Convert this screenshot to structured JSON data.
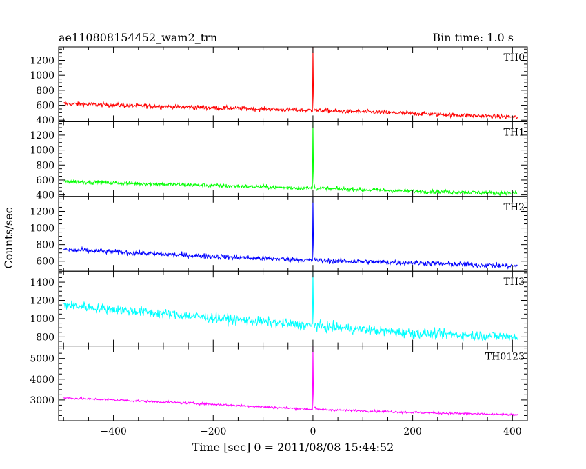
{
  "header": {
    "title": "ae110808154452_wam2_trn",
    "bin_time": "Bin time: 1.0 s"
  },
  "chart_data": {
    "type": "line",
    "xlabel": "Time [sec] 0 = 2011/08/08 15:44:52",
    "ylabel": "Counts/sec",
    "xlim": [
      -510,
      430
    ],
    "xticks": [
      -400,
      -200,
      0,
      200,
      400
    ],
    "x_range": [
      -500,
      410
    ],
    "panels": [
      {
        "name": "TH0",
        "color": "#ff0000",
        "ylim": [
          380,
          1380
        ],
        "yticks": [
          400,
          600,
          800,
          1000,
          1200
        ],
        "baseline": [
          [
            -500,
            620
          ],
          [
            -250,
            575
          ],
          [
            0,
            530
          ],
          [
            200,
            490
          ],
          [
            410,
            440
          ]
        ],
        "peak": 1380,
        "noise": 30
      },
      {
        "name": "TH1",
        "color": "#00ff00",
        "ylim": [
          380,
          1380
        ],
        "yticks": [
          400,
          600,
          800,
          1000,
          1200
        ],
        "baseline": [
          [
            -500,
            580
          ],
          [
            -250,
            535
          ],
          [
            0,
            490
          ],
          [
            200,
            450
          ],
          [
            410,
            420
          ]
        ],
        "peak": 1380,
        "noise": 28
      },
      {
        "name": "TH2",
        "color": "#0000ff",
        "ylim": [
          480,
          1380
        ],
        "yticks": [
          600,
          800,
          1000,
          1200
        ],
        "baseline": [
          [
            -500,
            740
          ],
          [
            -250,
            670
          ],
          [
            0,
            610
          ],
          [
            200,
            580
          ],
          [
            410,
            540
          ]
        ],
        "peak": 1380,
        "noise": 32
      },
      {
        "name": "TH3",
        "color": "#00ffff",
        "ylim": [
          700,
          1520
        ],
        "yticks": [
          800,
          1000,
          1200,
          1400
        ],
        "baseline": [
          [
            -500,
            1150
          ],
          [
            -250,
            1030
          ],
          [
            0,
            920
          ],
          [
            200,
            840
          ],
          [
            410,
            800
          ]
        ],
        "peak": 1520,
        "noise": 55
      },
      {
        "name": "TH0123",
        "color": "#ff00ff",
        "ylim": [
          2000,
          5600
        ],
        "yticks": [
          3000,
          4000,
          5000
        ],
        "baseline": [
          [
            -500,
            3100
          ],
          [
            -250,
            2850
          ],
          [
            0,
            2550
          ],
          [
            200,
            2400
          ],
          [
            410,
            2280
          ]
        ],
        "peak": 5600,
        "noise": 55
      }
    ]
  }
}
